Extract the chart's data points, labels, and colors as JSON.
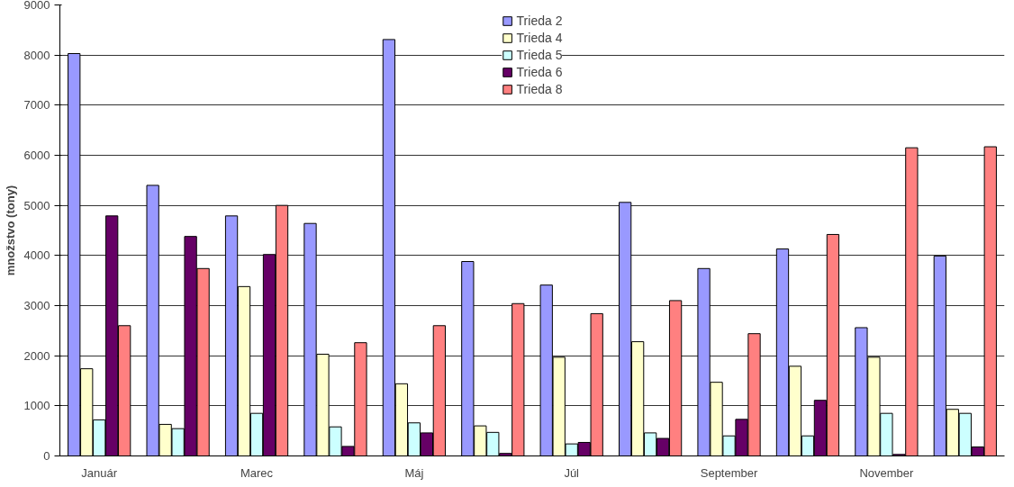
{
  "chart_data": {
    "type": "bar",
    "ylabel": "množstvo (tony)",
    "categories": [
      "Január",
      null,
      "Marec",
      null,
      "Máj",
      null,
      "Júl",
      null,
      "September",
      null,
      "November",
      null
    ],
    "series": [
      {
        "name": "Trieda 2",
        "color": "#9999ff",
        "values": [
          8030,
          5400,
          4790,
          4640,
          8310,
          3880,
          3410,
          5060,
          3740,
          4130,
          2560,
          3990
        ]
      },
      {
        "name": "Trieda 4",
        "color": "#ffffcc",
        "values": [
          1740,
          630,
          3380,
          2030,
          1440,
          600,
          1970,
          2280,
          1470,
          1790,
          1970,
          930
        ]
      },
      {
        "name": "Trieda 5",
        "color": "#ccffff",
        "values": [
          720,
          545,
          850,
          580,
          660,
          470,
          240,
          460,
          400,
          400,
          850,
          850
        ]
      },
      {
        "name": "Trieda 6",
        "color": "#660066",
        "values": [
          4790,
          4380,
          4020,
          190,
          460,
          50,
          270,
          350,
          730,
          1110,
          30,
          180
        ]
      },
      {
        "name": "Trieda 8",
        "color": "#ff8080",
        "values": [
          2600,
          3740,
          5000,
          2260,
          2600,
          3040,
          2840,
          3100,
          2440,
          4420,
          6150,
          6170
        ]
      }
    ],
    "ylim": [
      0,
      9000
    ],
    "yticks": [
      0,
      1000,
      2000,
      3000,
      4000,
      5000,
      6000,
      7000,
      8000,
      9000
    ],
    "grid": "y",
    "legend": "top"
  }
}
